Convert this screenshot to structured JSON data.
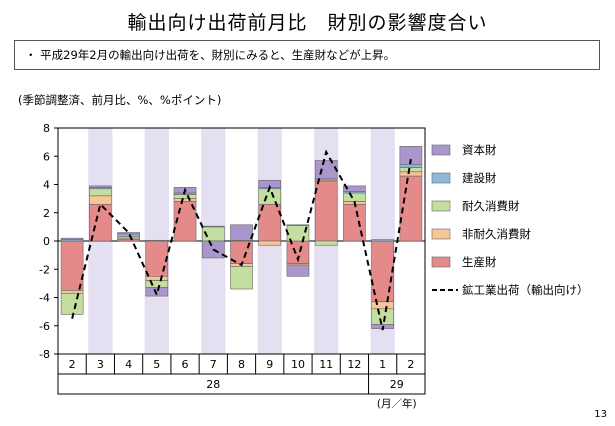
{
  "title": "輸出向け出荷前月比　財別の影響度合い",
  "note": "・ 平成29年2月の輸出向け出荷を、財別にみると、生産財などが上昇。",
  "unit_label": "(季節調整済、前月比、%、%ポイント)",
  "page_number": "13",
  "colors": {
    "shade": "#e4dff1",
    "capital": "#a896cc",
    "construction": "#8fb8d8",
    "durable": "#c4dea0",
    "nondurable": "#f6c699",
    "producer": "#e58a8a",
    "line": "#000000"
  },
  "chart_data": {
    "type": "bar",
    "stacked": true,
    "categories": [
      "2",
      "3",
      "4",
      "5",
      "6",
      "7",
      "8",
      "9",
      "10",
      "11",
      "12",
      "1",
      "2"
    ],
    "year_labels": [
      {
        "text": "28",
        "span": [
          0,
          10
        ]
      },
      {
        "text": "29",
        "span": [
          11,
          12
        ]
      }
    ],
    "year_sub_label": "(月／年)",
    "shaded_categories": [
      1,
      3,
      5,
      7,
      9,
      11
    ],
    "ylim": [
      -8,
      8
    ],
    "yticks": [
      8,
      6,
      4,
      2,
      0,
      -2,
      -4,
      -6,
      -8
    ],
    "series": [
      {
        "name": "生産財",
        "key": "producer",
        "values": [
          -3.5,
          2.6,
          0.1,
          -2.5,
          2.8,
          0,
          -1.6,
          2.6,
          -1.6,
          4.2,
          2.6,
          -4.3,
          4.6
        ]
      },
      {
        "name": "非耐久消費財",
        "key": "nondurable",
        "values": [
          -0.2,
          0.6,
          0.1,
          -0.3,
          0.2,
          0,
          -0.2,
          -0.3,
          -0.1,
          0.1,
          0.2,
          -0.5,
          0.3
        ]
      },
      {
        "name": "耐久消費財",
        "key": "durable",
        "values": [
          -1.5,
          0.5,
          0.1,
          -0.5,
          0.3,
          1.0,
          -1.6,
          1.1,
          1.1,
          -0.3,
          0.6,
          -1.1,
          0.3
        ]
      },
      {
        "name": "建設財",
        "key": "construction",
        "values": [
          0.1,
          0.1,
          0.2,
          0.05,
          0.1,
          0.05,
          0.05,
          0.1,
          0.05,
          0.1,
          0.1,
          0.1,
          0.2
        ]
      },
      {
        "name": "資本財",
        "key": "capital",
        "values": [
          0.1,
          0.1,
          0.1,
          -0.6,
          0.4,
          -1.2,
          1.1,
          0.5,
          -0.8,
          1.3,
          0.4,
          -0.3,
          1.3
        ]
      }
    ],
    "line": {
      "name": "鉱工業出荷（輸出向け）",
      "values": [
        -5.5,
        2.6,
        0.6,
        -3.8,
        3.6,
        -0.6,
        -1.7,
        3.8,
        -1.3,
        6.3,
        2.8,
        -6.3,
        5.8
      ]
    },
    "legend_order": [
      "capital",
      "construction",
      "durable",
      "nondurable",
      "producer",
      "line"
    ],
    "legend_position": "right"
  }
}
